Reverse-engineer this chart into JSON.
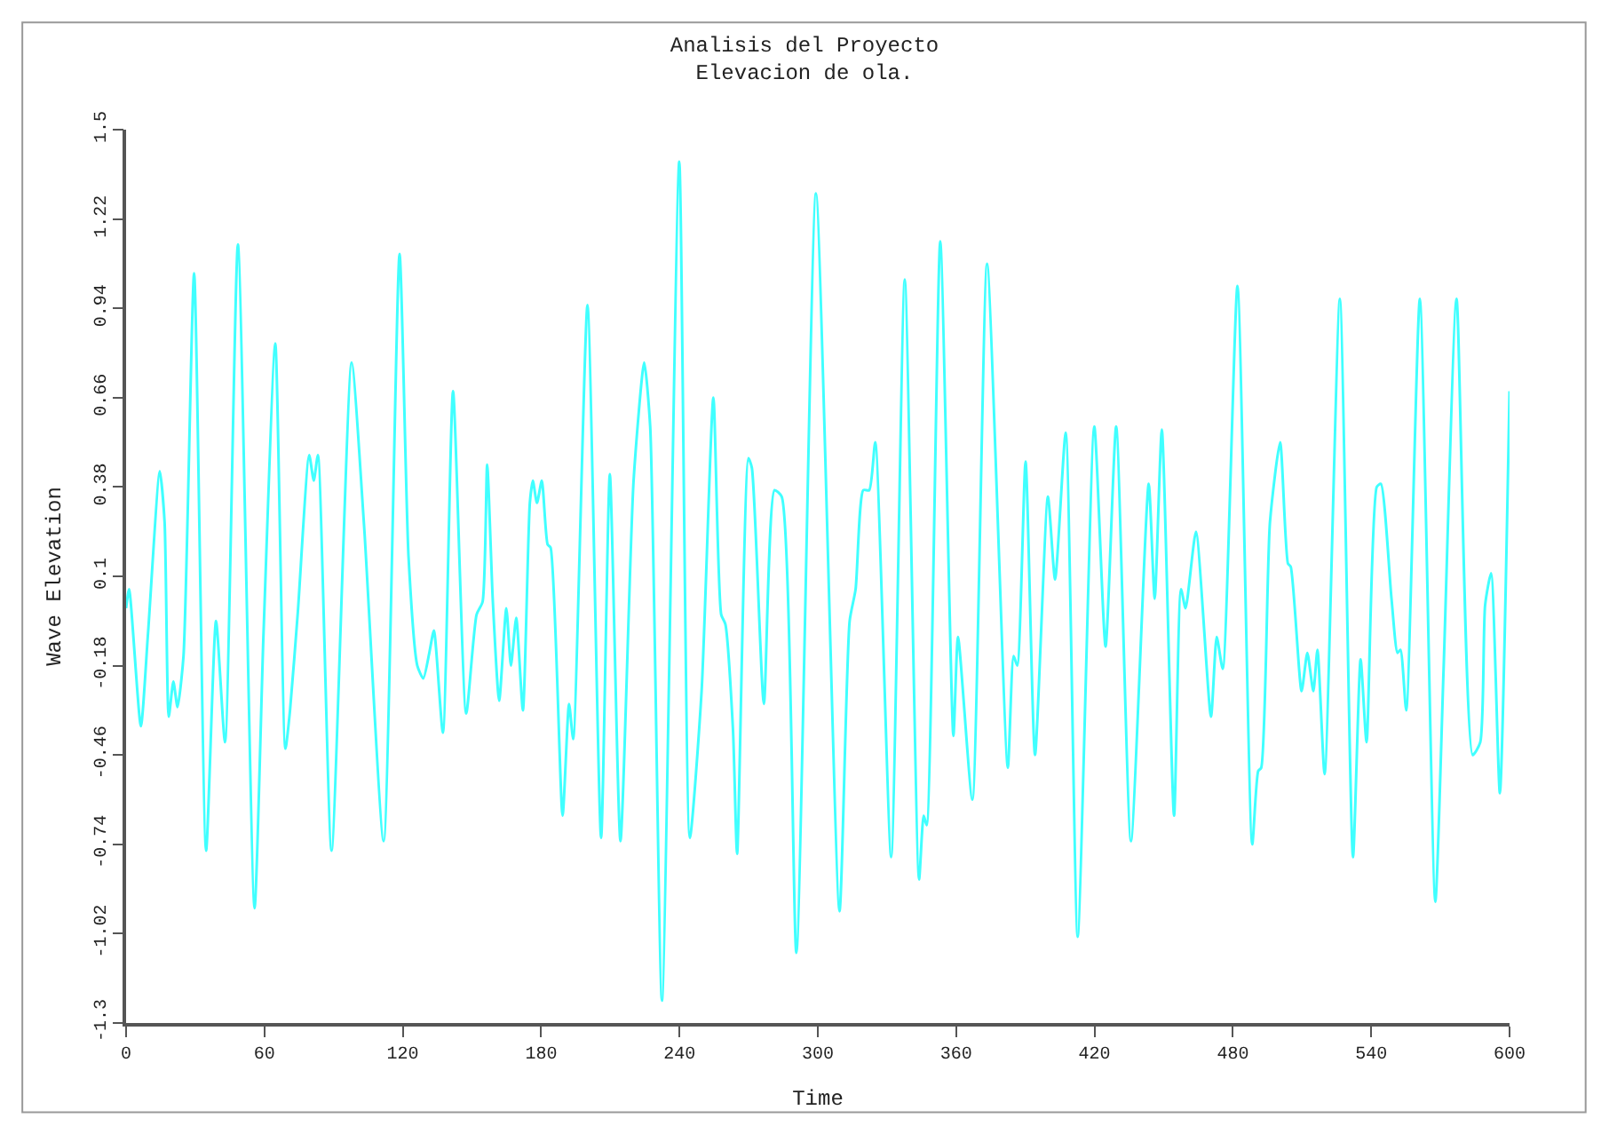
{
  "chart_data": {
    "type": "line",
    "title": "Analisis del Proyecto",
    "subtitle": "Elevacion de ola.",
    "xlabel": "Time",
    "ylabel": "Wave Elevation",
    "x": [
      0,
      1.3,
      6.4,
      9.5,
      14.6,
      16.7,
      18.5,
      20.5,
      22.3,
      24.9,
      29.5,
      34.7,
      39.0,
      42.9,
      48.5,
      55.7,
      59.6,
      64.7,
      69.1,
      71.1,
      74.5,
      79.4,
      81.4,
      83.2,
      89.1,
      97.8,
      103.2,
      111.7,
      118.6,
      122.5,
      126.3,
      128.9,
      131.5,
      133.5,
      137.4,
      141.8,
      147.5,
      152.0,
      154.6,
      156.6,
      159.0,
      161.8,
      164.9,
      166.9,
      169.2,
      172.1,
      175.1,
      176.4,
      178.2,
      180.3,
      182.8,
      184.1,
      189.3,
      192.1,
      193.9,
      200.1,
      206.0,
      209.8,
      214.4,
      220.1,
      224.7,
      227.3,
      232.4,
      239.9,
      244.5,
      249.6,
      254.7,
      258.1,
      259.9,
      263.2,
      265.0,
      269.9,
      271.4,
      276.6,
      281.2,
      284.3,
      290.7,
      299.2,
      309.4,
      313.8,
      316.4,
      319.7,
      322.3,
      324.9,
      331.8,
      337.7,
      343.9,
      345.9,
      347.2,
      353.1,
      358.8,
      360.8,
      367.0,
      373.4,
      382.4,
      384.9,
      386.5,
      390.1,
      394.2,
      399.8,
      402.9,
      407.5,
      412.7,
      419.9,
      424.8,
      429.4,
      435.8,
      443.5,
      446.1,
      449.2,
      454.5,
      457.5,
      459.5,
      464.0,
      470.5,
      473.0,
      475.6,
      482.0,
      488.4,
      491.0,
      492.3,
      496.1,
      500.5,
      503.9,
      505.1,
      509.8,
      512.3,
      514.9,
      516.7,
      519.8,
      526.4,
      532.1,
      535.4,
      538.0,
      542.4,
      544.2,
      548.8,
      551.4,
      552.7,
      555.2,
      561.1,
      567.8,
      571.4,
      577.0,
      584.0,
      587.3,
      589.4,
      592.0,
      595.8,
      600
    ],
    "series": [
      {
        "color": "#40ffff",
        "values": [
          0.0,
          0.06,
          -0.37,
          -0.08,
          0.43,
          0.27,
          -0.34,
          -0.23,
          -0.31,
          -0.15,
          1.05,
          -0.76,
          -0.04,
          -0.42,
          1.14,
          -0.94,
          -0.08,
          0.83,
          -0.44,
          -0.32,
          -0.01,
          0.48,
          0.4,
          0.48,
          -0.76,
          0.77,
          0.26,
          -0.73,
          1.11,
          0.16,
          -0.18,
          -0.22,
          -0.14,
          -0.07,
          -0.39,
          0.68,
          -0.33,
          -0.02,
          0.02,
          0.45,
          0.03,
          -0.29,
          0.0,
          -0.18,
          -0.03,
          -0.32,
          0.33,
          0.4,
          0.33,
          0.4,
          0.2,
          0.19,
          -0.65,
          -0.3,
          -0.41,
          0.95,
          -0.72,
          0.42,
          -0.73,
          0.4,
          0.77,
          0.57,
          -1.23,
          1.4,
          -0.72,
          -0.26,
          0.66,
          -0.02,
          -0.05,
          -0.38,
          -0.77,
          0.47,
          0.44,
          -0.3,
          0.37,
          0.35,
          -1.08,
          1.3,
          -0.95,
          -0.04,
          0.06,
          0.37,
          0.37,
          0.52,
          -0.78,
          1.03,
          -0.85,
          -0.65,
          -0.68,
          1.15,
          -0.4,
          -0.09,
          -0.6,
          1.08,
          -0.5,
          -0.15,
          -0.18,
          0.46,
          -0.46,
          0.35,
          0.09,
          0.55,
          -1.03,
          0.57,
          -0.12,
          0.57,
          -0.73,
          0.39,
          0.03,
          0.56,
          -0.65,
          0.06,
          0.0,
          0.24,
          -0.34,
          -0.09,
          -0.19,
          1.01,
          -0.74,
          -0.51,
          -0.5,
          0.27,
          0.52,
          0.14,
          0.13,
          -0.26,
          -0.14,
          -0.26,
          -0.13,
          -0.52,
          0.97,
          -0.78,
          -0.16,
          -0.42,
          0.38,
          0.39,
          0.03,
          -0.14,
          -0.13,
          -0.32,
          0.97,
          -0.92,
          -0.19,
          0.97,
          -0.46,
          -0.42,
          0.01,
          0.11,
          -0.58,
          0.68
        ]
      }
    ],
    "xlim": [
      0,
      600
    ],
    "xticks": [
      0,
      60,
      120,
      180,
      240,
      300,
      360,
      420,
      480,
      540,
      600
    ],
    "ylim": [
      -1.3,
      1.5
    ],
    "yticks": [
      -1.3,
      -1.02,
      -0.74,
      -0.46,
      -0.18,
      0.1,
      0.38,
      0.66,
      0.94,
      1.22,
      1.5
    ],
    "marker": "none",
    "line_style": "solid"
  }
}
